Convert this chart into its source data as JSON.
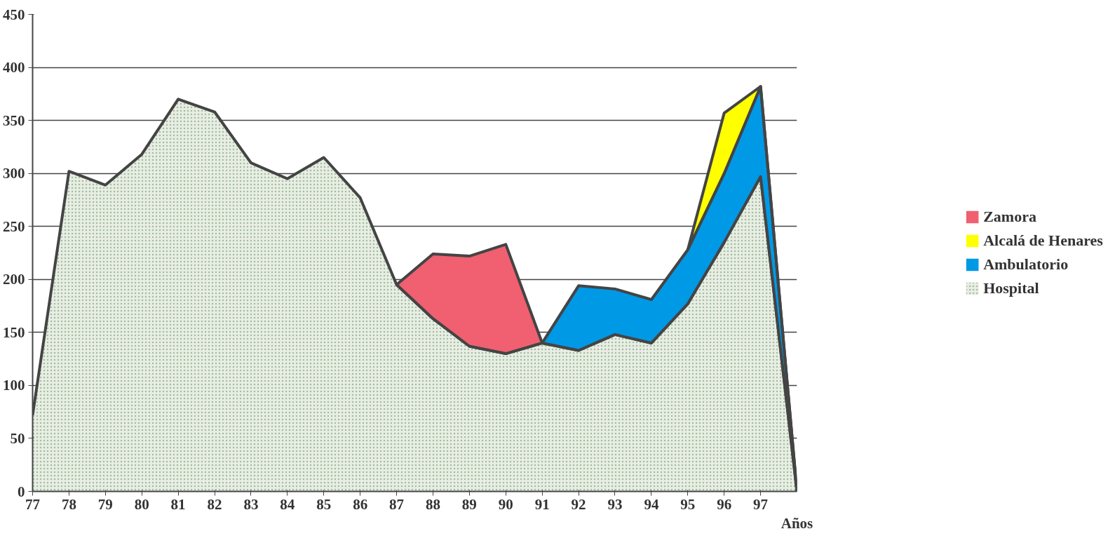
{
  "chart_data": {
    "type": "area",
    "stacked": true,
    "xlabel": "Años",
    "x": [
      77,
      78,
      79,
      80,
      81,
      82,
      83,
      84,
      85,
      86,
      87,
      88,
      89,
      90,
      91,
      92,
      93,
      94,
      95,
      96,
      97,
      98
    ],
    "xlim": [
      77,
      98
    ],
    "xticks": [
      77,
      78,
      79,
      80,
      81,
      82,
      83,
      84,
      85,
      86,
      87,
      88,
      89,
      90,
      91,
      92,
      93,
      94,
      95,
      96,
      97
    ],
    "ylim": [
      0,
      450
    ],
    "yticks": [
      0,
      50,
      100,
      150,
      200,
      250,
      300,
      350,
      400,
      450
    ],
    "grid": "y",
    "legend": "right",
    "series": [
      {
        "name": "Hospital",
        "color": "#e9ede4",
        "values": [
          72,
          302,
          289,
          318,
          370,
          358,
          310,
          295,
          315,
          277,
          195,
          163,
          137,
          130,
          140,
          133,
          148,
          140,
          177,
          235,
          297,
          0
        ]
      },
      {
        "name": "Ambulatorio",
        "color": "#0099e6",
        "values": [
          null,
          null,
          null,
          null,
          null,
          null,
          null,
          null,
          null,
          null,
          null,
          null,
          null,
          null,
          0,
          61,
          43,
          41,
          51,
          65,
          85,
          0
        ]
      },
      {
        "name": "Alcalá de Henares",
        "color": "#ffff00",
        "values": [
          null,
          null,
          null,
          null,
          null,
          null,
          null,
          null,
          null,
          null,
          null,
          null,
          null,
          null,
          null,
          null,
          null,
          null,
          0,
          57,
          0,
          0
        ]
      },
      {
        "name": "Zamora",
        "color": "#f06070",
        "values": [
          null,
          null,
          null,
          null,
          null,
          null,
          null,
          null,
          null,
          null,
          0,
          61,
          85,
          103,
          0,
          null,
          null,
          null,
          null,
          null,
          null,
          null
        ]
      }
    ]
  }
}
